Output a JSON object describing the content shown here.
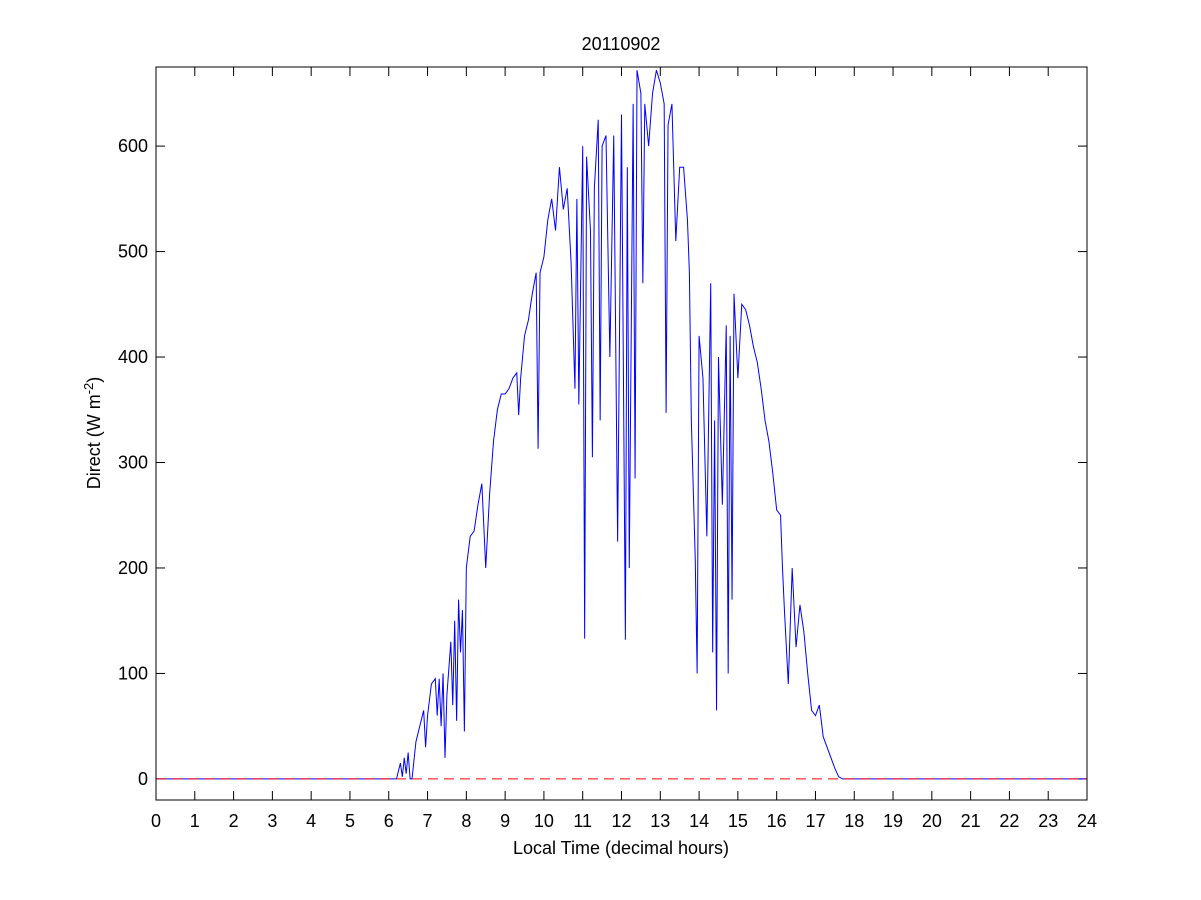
{
  "chart_data": {
    "type": "line",
    "title": "20110902",
    "xlabel": "Local Time (decimal hours)",
    "ylabel": {
      "text": "Direct (W m",
      "superscript": "-2",
      "suffix": ")"
    },
    "xlim": [
      0,
      24
    ],
    "xticks": [
      0,
      1,
      2,
      3,
      4,
      5,
      6,
      7,
      8,
      9,
      10,
      11,
      12,
      13,
      14,
      15,
      16,
      17,
      18,
      19,
      20,
      21,
      22,
      23,
      24
    ],
    "ylim": [
      -20,
      675
    ],
    "yticks": [
      0,
      100,
      200,
      300,
      400,
      500,
      600
    ],
    "grid": false,
    "reference_line": {
      "value": 0,
      "color": "#ff0000",
      "style": "dashed"
    },
    "series": [
      {
        "color": "#0000ff",
        "x": [
          0,
          6.2,
          6.3,
          6.35,
          6.4,
          6.45,
          6.5,
          6.55,
          6.6,
          6.7,
          6.8,
          6.9,
          6.95,
          7.0,
          7.1,
          7.2,
          7.25,
          7.3,
          7.35,
          7.4,
          7.45,
          7.5,
          7.6,
          7.65,
          7.7,
          7.75,
          7.8,
          7.85,
          7.9,
          7.95,
          8.0,
          8.1,
          8.2,
          8.3,
          8.4,
          8.5,
          8.6,
          8.7,
          8.8,
          8.9,
          9.0,
          9.1,
          9.2,
          9.3,
          9.35,
          9.4,
          9.5,
          9.6,
          9.7,
          9.8,
          9.85,
          9.9,
          10.0,
          10.1,
          10.2,
          10.3,
          10.4,
          10.5,
          10.6,
          10.7,
          10.8,
          10.85,
          10.9,
          11.0,
          11.05,
          11.1,
          11.2,
          11.25,
          11.3,
          11.4,
          11.45,
          11.5,
          11.6,
          11.7,
          11.8,
          11.9,
          12.0,
          12.1,
          12.15,
          12.2,
          12.3,
          12.35,
          12.4,
          12.5,
          12.55,
          12.6,
          12.7,
          12.8,
          12.9,
          13.0,
          13.1,
          13.15,
          13.2,
          13.3,
          13.4,
          13.5,
          13.6,
          13.7,
          13.75,
          13.8,
          13.9,
          13.95,
          14.0,
          14.1,
          14.2,
          14.3,
          14.35,
          14.4,
          14.45,
          14.5,
          14.6,
          14.7,
          14.75,
          14.8,
          14.85,
          14.9,
          15.0,
          15.1,
          15.2,
          15.3,
          15.4,
          15.5,
          15.6,
          15.7,
          15.8,
          15.9,
          16.0,
          16.1,
          16.15,
          16.2,
          16.3,
          16.4,
          16.5,
          16.6,
          16.7,
          16.8,
          16.9,
          17.0,
          17.1,
          17.2,
          17.3,
          17.4,
          17.5,
          17.6,
          17.7,
          18,
          24
        ],
        "values": [
          0,
          0,
          15,
          2,
          20,
          5,
          25,
          0,
          0,
          35,
          50,
          65,
          30,
          60,
          90,
          95,
          60,
          95,
          50,
          100,
          20,
          80,
          130,
          70,
          150,
          55,
          170,
          120,
          160,
          45,
          200,
          230,
          235,
          260,
          280,
          200,
          270,
          320,
          350,
          365,
          365,
          370,
          380,
          385,
          345,
          380,
          420,
          435,
          460,
          480,
          313,
          480,
          495,
          530,
          550,
          520,
          580,
          540,
          560,
          490,
          370,
          550,
          355,
          600,
          133,
          590,
          520,
          305,
          560,
          625,
          340,
          600,
          610,
          400,
          610,
          225,
          630,
          132,
          580,
          200,
          640,
          285,
          672,
          650,
          470,
          640,
          600,
          650,
          672,
          660,
          640,
          347,
          620,
          640,
          510,
          580,
          580,
          530,
          480,
          340,
          210,
          100,
          420,
          380,
          230,
          470,
          120,
          340,
          65,
          400,
          260,
          430,
          100,
          420,
          170,
          460,
          380,
          450,
          445,
          430,
          410,
          395,
          370,
          340,
          320,
          290,
          255,
          250,
          200,
          160,
          90,
          200,
          125,
          165,
          140,
          100,
          65,
          60,
          70,
          40,
          30,
          20,
          10,
          2,
          0,
          0,
          0
        ]
      }
    ]
  }
}
